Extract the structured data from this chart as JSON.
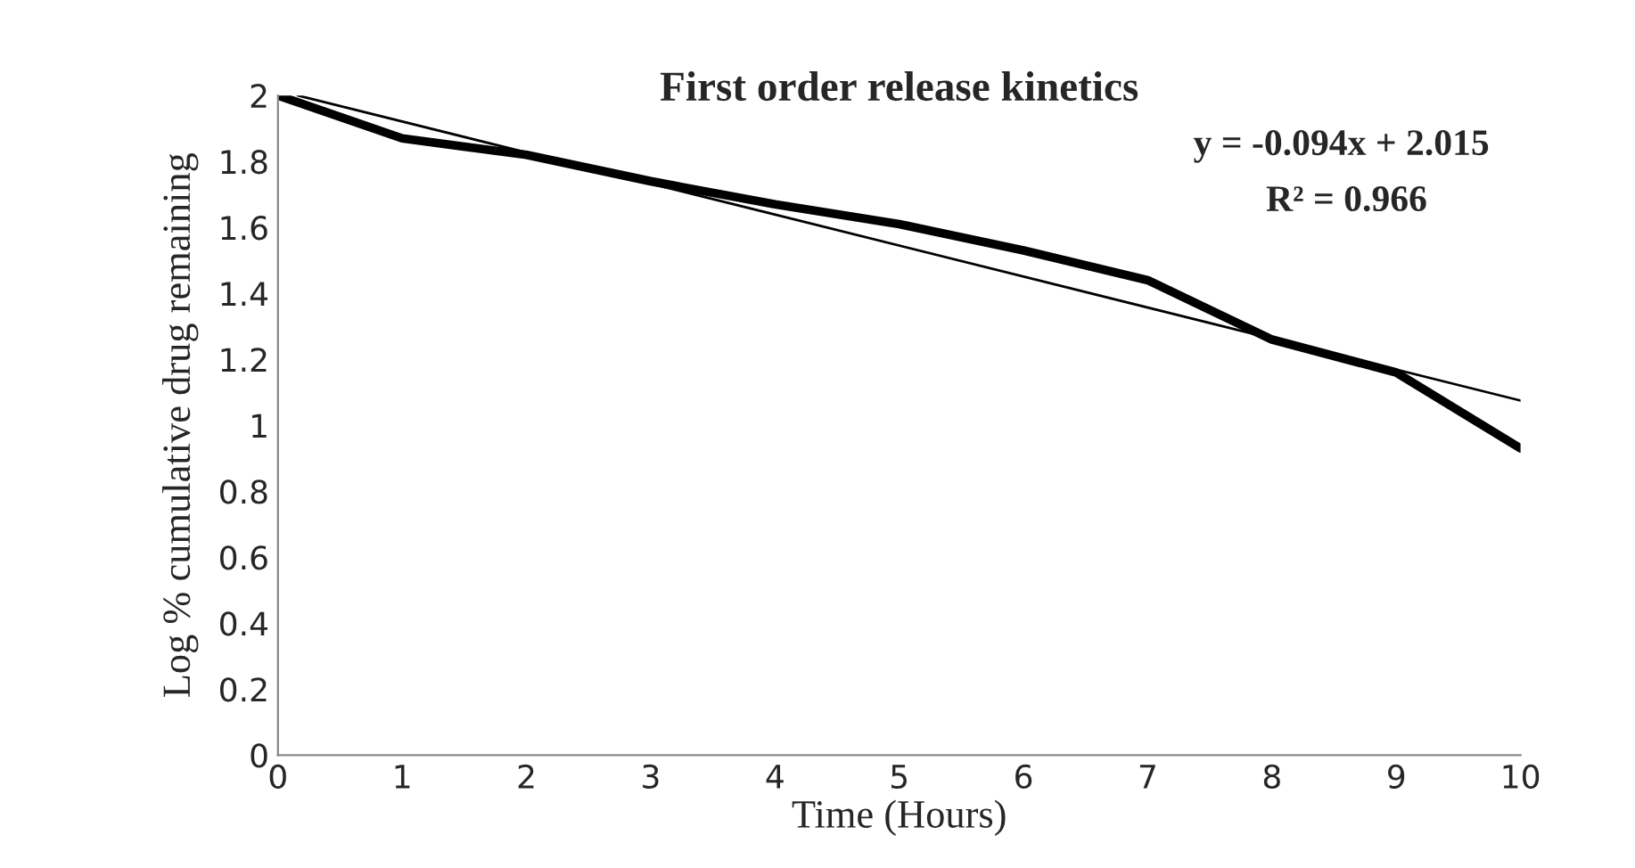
{
  "chart_data": {
    "type": "line",
    "title": "First order release kinetics",
    "xlabel": "Time (Hours)",
    "ylabel": "Log % cumulative drug remaining",
    "x": [
      0,
      1,
      2,
      3,
      4,
      5,
      6,
      7,
      8,
      9,
      10
    ],
    "series": [
      {
        "color": "#000000",
        "values": [
          2.0,
          1.87,
          1.82,
          1.74,
          1.67,
          1.61,
          1.53,
          1.44,
          1.26,
          1.16,
          0.93
        ]
      },
      {
        "type": "line",
        "color": "#000000",
        "x": [
          0.16,
          10
        ],
        "values": [
          2.0,
          1.075
        ]
      }
    ],
    "annotations": [
      "y = -0.094x + 2.015",
      "R² = 0.966"
    ],
    "xlim": [
      0,
      10
    ],
    "xticks": [
      0,
      1,
      2,
      3,
      4,
      5,
      6,
      7,
      8,
      9,
      10
    ],
    "ylim": [
      0,
      2
    ],
    "yticks": [
      0,
      0.2,
      0.4,
      0.6,
      0.8,
      1,
      1.2,
      1.4,
      1.6,
      1.8,
      2
    ],
    "grid": false,
    "legend": false,
    "marker": "none",
    "line_style": "solid"
  }
}
